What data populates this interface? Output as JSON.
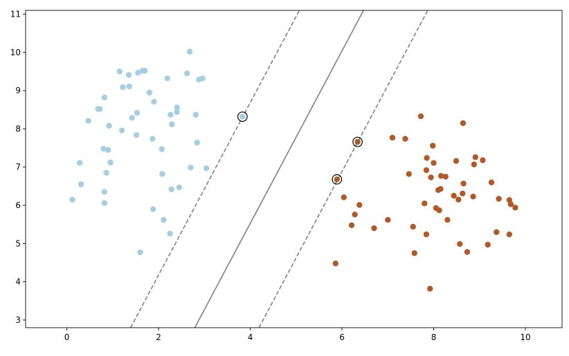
{
  "chart_data": {
    "type": "scatter",
    "title": "",
    "xlabel": "",
    "ylabel": "",
    "xlim": [
      -0.9,
      10.8
    ],
    "ylim": [
      2.8,
      11.1
    ],
    "xticks": [
      "0",
      "2",
      "4",
      "6",
      "8",
      "10"
    ],
    "yticks": [
      "3",
      "4",
      "5",
      "6",
      "7",
      "8",
      "9",
      "10",
      "11"
    ],
    "grid": false,
    "legend": false,
    "colors": {
      "class_a": "#a6cee3",
      "class_b": "#b15928",
      "boundary": "#808080",
      "support_edge": "#000000"
    },
    "series": [
      {
        "points": [
          [
            0.12,
            6.15
          ],
          [
            0.28,
            7.11
          ],
          [
            0.31,
            6.55
          ],
          [
            0.47,
            8.21
          ],
          [
            0.68,
            8.52
          ],
          [
            0.72,
            8.52
          ],
          [
            0.8,
            7.48
          ],
          [
            0.82,
            8.82
          ],
          [
            0.82,
            6.35
          ],
          [
            0.82,
            6.06
          ],
          [
            0.86,
            6.85
          ],
          [
            0.9,
            7.45
          ],
          [
            0.92,
            8.08
          ],
          [
            0.95,
            7.12
          ],
          [
            1.15,
            9.5
          ],
          [
            1.2,
            7.96
          ],
          [
            1.22,
            9.09
          ],
          [
            1.35,
            9.41
          ],
          [
            1.36,
            9.11
          ],
          [
            1.42,
            8.29
          ],
          [
            1.52,
            7.84
          ],
          [
            1.53,
            8.42
          ],
          [
            1.55,
            9.47
          ],
          [
            1.6,
            4.77
          ],
          [
            1.65,
            9.52
          ],
          [
            1.7,
            9.52
          ],
          [
            1.8,
            8.95
          ],
          [
            1.87,
            7.74
          ],
          [
            1.9,
            8.71
          ],
          [
            1.88,
            5.9
          ],
          [
            2.07,
            7.47
          ],
          [
            2.08,
            6.82
          ],
          [
            2.11,
            5.62
          ],
          [
            2.19,
            9.32
          ],
          [
            2.25,
            5.26
          ],
          [
            2.26,
            8.37
          ],
          [
            2.28,
            6.42
          ],
          [
            2.29,
            8.12
          ],
          [
            2.4,
            8.56
          ],
          [
            2.4,
            8.44
          ],
          [
            2.45,
            6.47
          ],
          [
            2.62,
            9.45
          ],
          [
            2.68,
            10.02
          ],
          [
            2.7,
            6.99
          ],
          [
            2.81,
            8.37
          ],
          [
            2.84,
            7.64
          ],
          [
            2.88,
            9.29
          ],
          [
            2.96,
            9.32
          ],
          [
            3.04,
            6.97
          ],
          [
            3.83,
            8.32
          ]
        ]
      },
      {
        "points": [
          [
            5.86,
            4.48
          ],
          [
            5.89,
            6.68
          ],
          [
            6.04,
            6.21
          ],
          [
            6.21,
            5.48
          ],
          [
            6.28,
            5.76
          ],
          [
            6.34,
            7.66
          ],
          [
            6.38,
            6.01
          ],
          [
            6.7,
            5.4
          ],
          [
            7.0,
            5.62
          ],
          [
            7.1,
            7.77
          ],
          [
            7.38,
            7.74
          ],
          [
            7.46,
            6.82
          ],
          [
            7.55,
            5.44
          ],
          [
            7.58,
            4.75
          ],
          [
            7.72,
            8.33
          ],
          [
            7.8,
            6.05
          ],
          [
            7.84,
            5.24
          ],
          [
            7.84,
            6.92
          ],
          [
            7.85,
            7.24
          ],
          [
            7.92,
            3.82
          ],
          [
            7.94,
            6.73
          ],
          [
            7.98,
            7.56
          ],
          [
            8.0,
            7.11
          ],
          [
            8.05,
            5.93
          ],
          [
            8.1,
            6.4
          ],
          [
            8.12,
            5.87
          ],
          [
            8.15,
            6.43
          ],
          [
            8.16,
            6.77
          ],
          [
            8.26,
            6.75
          ],
          [
            8.3,
            5.62
          ],
          [
            8.44,
            6.25
          ],
          [
            8.49,
            7.16
          ],
          [
            8.54,
            6.15
          ],
          [
            8.57,
            4.99
          ],
          [
            8.63,
            6.31
          ],
          [
            8.64,
            8.15
          ],
          [
            8.65,
            6.57
          ],
          [
            8.73,
            4.78
          ],
          [
            8.86,
            6.23
          ],
          [
            8.88,
            7.07
          ],
          [
            8.91,
            7.26
          ],
          [
            9.07,
            7.18
          ],
          [
            9.18,
            4.97
          ],
          [
            9.26,
            6.6
          ],
          [
            9.37,
            5.3
          ],
          [
            9.42,
            6.17
          ],
          [
            9.65,
            6.14
          ],
          [
            9.65,
            5.24
          ],
          [
            9.68,
            6.03
          ],
          [
            9.78,
            5.94
          ]
        ]
      }
    ],
    "support_vectors": [
      [
        3.83,
        8.32
      ],
      [
        6.34,
        7.66
      ],
      [
        5.89,
        6.68
      ]
    ],
    "lines": [
      {
        "style": "dashed",
        "points": [
          [
            1.39,
            2.8
          ],
          [
            5.07,
            11.1
          ]
        ]
      },
      {
        "style": "solid",
        "points": [
          [
            2.79,
            2.8
          ],
          [
            6.47,
            11.1
          ]
        ]
      },
      {
        "style": "dashed",
        "points": [
          [
            4.19,
            2.8
          ],
          [
            7.87,
            11.1
          ]
        ]
      }
    ]
  }
}
